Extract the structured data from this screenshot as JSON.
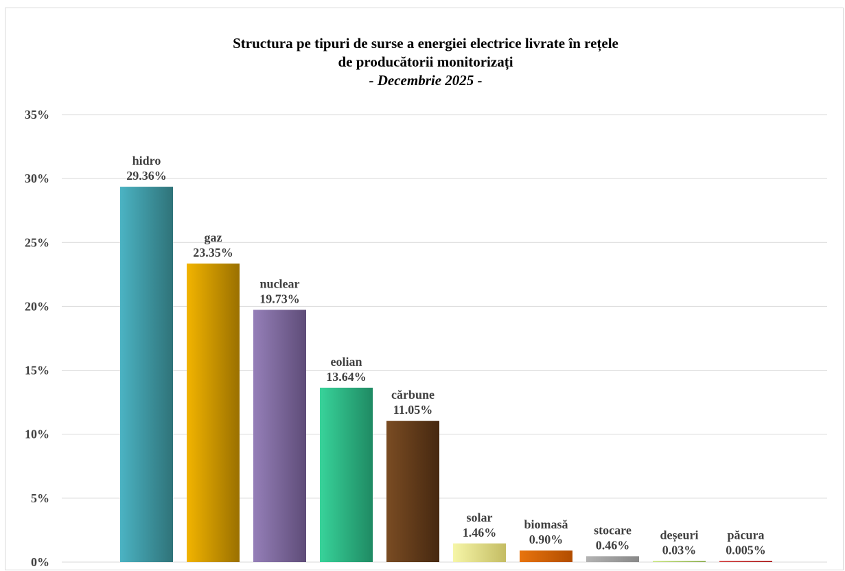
{
  "chart_data": {
    "type": "bar",
    "title_lines": [
      "Structura pe tipuri de surse a energiei electrice livrate în rețele",
      "de producătorii monitorizați"
    ],
    "subtitle": "- Decembrie 2025 -",
    "xlabel": "",
    "ylabel": "",
    "ylim": [
      0,
      35
    ],
    "yticks": [
      "0%",
      "5%",
      "10%",
      "15%",
      "20%",
      "25%",
      "30%",
      "35%"
    ],
    "ytick_values": [
      0,
      5,
      10,
      15,
      20,
      25,
      30,
      35
    ],
    "grid": true,
    "legend": "none",
    "categories": [
      "hidro",
      "gaz",
      "nuclear",
      "eolian",
      "cărbune",
      "solar",
      "biomasă",
      "stocare",
      "deșeuri",
      "păcura"
    ],
    "values": [
      29.36,
      23.35,
      19.73,
      13.64,
      11.05,
      1.46,
      0.9,
      0.46,
      0.03,
      0.005
    ],
    "value_labels": [
      "29.36%",
      "23.35%",
      "19.73%",
      "13.64%",
      "11.05%",
      "1.46%",
      "0.90%",
      "0.46%",
      "0.03%",
      "0.005%"
    ],
    "colors": [
      [
        "#4bb3c3",
        "#2f7379"
      ],
      [
        "#f2b400",
        "#9a7000"
      ],
      [
        "#957fb8",
        "#5e4c78"
      ],
      [
        "#38d39a",
        "#1f8a63"
      ],
      [
        "#7a4c23",
        "#462810"
      ],
      [
        "#f6f6a8",
        "#c4bc63"
      ],
      [
        "#e8740e",
        "#b24d00"
      ],
      [
        "#b3b3b3",
        "#888888"
      ],
      [
        "#c7e57a",
        "#7fa43a"
      ],
      [
        "#d03030",
        "#a00000"
      ]
    ]
  }
}
